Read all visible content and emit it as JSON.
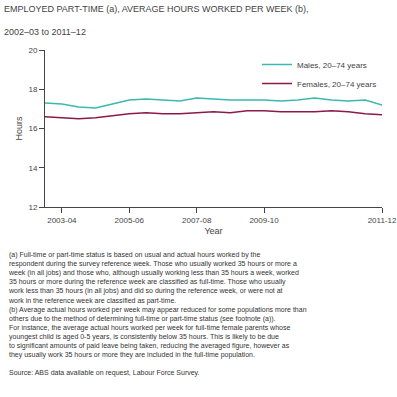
{
  "chart_data": {
    "type": "line",
    "title": "EMPLOYED PART-TIME (a), AVERAGE HOURS WORKED PER WEEK (b),",
    "subtitle": "2002–03 to 2011–12",
    "xlabel": "Year",
    "ylabel": "Hours",
    "categories": [
      null,
      "2003-04",
      null,
      null,
      null,
      "2005-06",
      null,
      null,
      null,
      "2007-08",
      null,
      null,
      null,
      "2009-10",
      null,
      null,
      null,
      null,
      null,
      null,
      "2011-12"
    ],
    "series": [
      {
        "name": "Males, 20–74 years",
        "color": "#3cb8b0",
        "values": [
          17.3,
          17.25,
          17.1,
          17.05,
          17.25,
          17.45,
          17.5,
          17.45,
          17.4,
          17.55,
          17.5,
          17.45,
          17.45,
          17.45,
          17.4,
          17.45,
          17.55,
          17.45,
          17.4,
          17.45,
          17.2
        ]
      },
      {
        "name": "Females, 20–74 years",
        "color": "#8b1a4a",
        "values": [
          16.6,
          16.55,
          16.5,
          16.55,
          16.65,
          16.75,
          16.8,
          16.75,
          16.75,
          16.8,
          16.85,
          16.8,
          16.9,
          16.9,
          16.85,
          16.85,
          16.85,
          16.9,
          16.85,
          16.75,
          16.7
        ]
      }
    ],
    "ylim": [
      12,
      20
    ],
    "yticks": [
      12,
      14,
      16,
      18,
      20
    ],
    "legend": "upper right",
    "grid": false,
    "annotations": [
      "(a) Full-time or part-time status is based on usual and actual hours worked by the respondent during the survey reference week. Those who usually worked 35 hours or more a week (in all jobs) and those who, although usually working less than 35 hours a week, worked 35 hours or more during the reference week are classified as full-time. Those who usually work less than 35 hours (in all jobs) and did so during the reference week, or were not at work in the reference week are classified as part-time.",
      "(b) Average actual hours worked per week may appear reduced for some populations more than others due to the method of determining full-time or part-time status (see footnote (a)). For instance, the average actual hours worked per week for full-time female parents whose youngest child is aged 0-5 years, is consistently below 35 hours. This is likely to be due to significant amounts of paid leave being taken, reducing the averaged figure, however as they usually work 35 hours or more they are included in the full-time population.",
      "Source: ABS data available on request, Labour Force Survey."
    ]
  }
}
